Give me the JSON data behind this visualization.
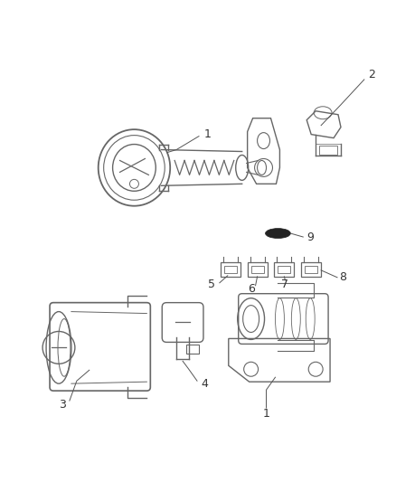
{
  "bg_color": "#ffffff",
  "line_color": "#666666",
  "label_color": "#333333",
  "figsize": [
    4.38,
    5.33
  ],
  "dpi": 100
}
